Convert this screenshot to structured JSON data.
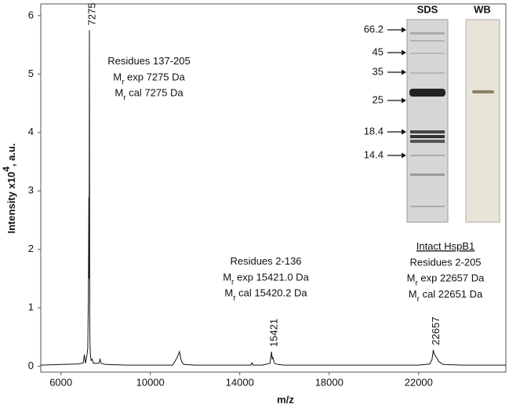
{
  "chart_data": {
    "type": "line",
    "x_label": "m/z",
    "y_label": [
      "Intensity x10",
      "4",
      ", a.u."
    ],
    "color": "#111111",
    "xlim": [
      5100,
      25900
    ],
    "xticks": [
      6000,
      10000,
      14000,
      18000,
      22000
    ],
    "ylim": [
      -0.1,
      6.2
    ],
    "yticks": [
      0,
      1,
      2,
      3,
      4,
      5,
      6
    ],
    "x": [
      5100,
      6000,
      6800,
      7000,
      7050,
      7100,
      7150,
      7200,
      7230,
      7250,
      7260,
      7275,
      7290,
      7300,
      7320,
      7350,
      7400,
      7450,
      7700,
      7750,
      7800,
      8000,
      9000,
      11000,
      11200,
      11300,
      11350,
      11400,
      11500,
      12000,
      14000,
      14500,
      14550,
      14600,
      15000,
      15350,
      15421,
      15450,
      15480,
      15550,
      15700,
      16000,
      20000,
      22000,
      22500,
      22600,
      22657,
      22700,
      22800,
      22900,
      23100,
      24000,
      25900
    ],
    "values": [
      0.02,
      0.03,
      0.04,
      0.06,
      0.2,
      0.05,
      0.15,
      0.3,
      1.2,
      2.9,
      1.5,
      5.75,
      0.9,
      0.4,
      0.2,
      0.1,
      0.12,
      0.05,
      0.05,
      0.12,
      0.05,
      0.03,
      0.02,
      0.02,
      0.15,
      0.25,
      0.15,
      0.08,
      0.03,
      0.02,
      0.02,
      0.02,
      0.06,
      0.02,
      0.02,
      0.05,
      0.25,
      0.12,
      0.15,
      0.05,
      0.03,
      0.02,
      0.02,
      0.02,
      0.04,
      0.12,
      0.28,
      0.2,
      0.15,
      0.08,
      0.03,
      0.02,
      0.02
    ],
    "peaks": [
      {
        "x": 7275,
        "y": 5.75,
        "label": "7275"
      },
      {
        "x": 15421,
        "y": 0.25,
        "label": "15421"
      },
      {
        "x": 22657,
        "y": 0.28,
        "label": "22657"
      }
    ],
    "annotations": [
      {
        "lines": [
          [
            "Residues 137-205"
          ],
          [
            "M",
            "r",
            " exp 7275 Da"
          ],
          [
            "M",
            "r",
            " cal  7275 Da"
          ]
        ]
      },
      {
        "lines": [
          [
            "Residues 2-136"
          ],
          [
            "M",
            "r",
            " exp 15421.0 Da"
          ],
          [
            "M",
            "r",
            " cal  15420.2 Da"
          ]
        ]
      },
      {
        "lines": [
          [
            "Intact HspB1"
          ],
          [
            "Residues 2-205"
          ],
          [
            "M",
            "r",
            " exp 22657 Da"
          ],
          [
            "M",
            "r",
            " cal  22651 Da"
          ]
        ]
      }
    ],
    "inset": {
      "lanes": [
        "SDS",
        "WB"
      ],
      "markers": [
        "66.2",
        "45",
        "35",
        "25",
        "18.4",
        "14.4"
      ]
    }
  }
}
